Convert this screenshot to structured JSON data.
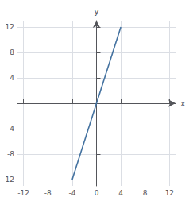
{
  "chart_data": {
    "type": "line",
    "xlabel": "x",
    "ylabel": "y",
    "x": [
      -4,
      4
    ],
    "values": [
      -12,
      12
    ],
    "color": "#4472a0",
    "xlim": [
      -13,
      13
    ],
    "ylim": [
      -13,
      13
    ],
    "xticks": [
      -12,
      -8,
      -4,
      0,
      4,
      8,
      12
    ],
    "yticks": [
      -12,
      -8,
      -4,
      4,
      8,
      12
    ],
    "grid": true
  }
}
